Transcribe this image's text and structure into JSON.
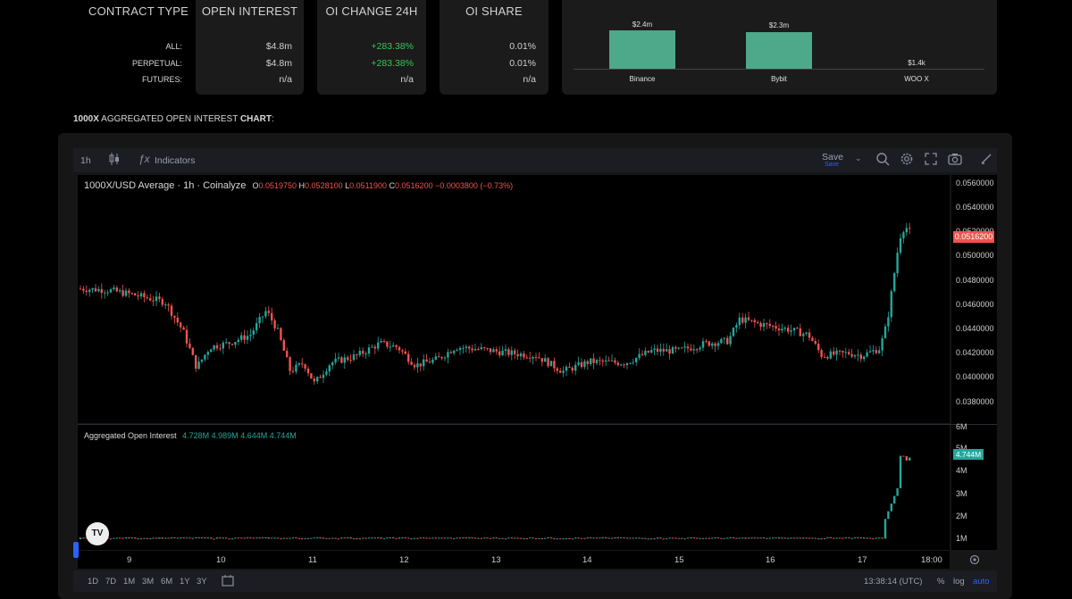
{
  "table": {
    "headers": [
      "CONTRACT TYPE",
      "OPEN INTEREST",
      "OI CHANGE 24H",
      "OI SHARE"
    ],
    "rows": [
      {
        "label": "ALL:",
        "open_interest": "$4.8m",
        "change": "+283.38%",
        "share": "0.01%"
      },
      {
        "label": "PERPETUAL:",
        "open_interest": "$4.8m",
        "change": "+283.38%",
        "share": "0.01%"
      },
      {
        "label": "FUTURES:",
        "open_interest": "n/a",
        "change": "n/a",
        "share": "n/a"
      }
    ]
  },
  "exchange_chart": {
    "bars": [
      {
        "exchange": "Binance",
        "label": "$2.4m",
        "value_m": 2.4
      },
      {
        "exchange": "Bybit",
        "label": "$2.3m",
        "value_m": 2.3
      },
      {
        "exchange": "WOO X",
        "label": "$1.4k",
        "value_m": 0.0014
      }
    ]
  },
  "section_title": {
    "bold": "1000X",
    "middle": "AGGREGATED OPEN INTEREST",
    "bold2": "CHART",
    "suffix": ":"
  },
  "toolbar": {
    "interval": "1h",
    "indicators": "Indicators",
    "save": "Save",
    "save_sub": "Save"
  },
  "price_pane": {
    "title": "1000X/USD Average · 1h · Coinalyze",
    "o_lbl": "O",
    "o": "0.0519750",
    "h_lbl": "H",
    "h": "0.0528100",
    "l_lbl": "L",
    "l": "0.0511900",
    "c_lbl": "C",
    "c": "0.0516200",
    "chg": "−0.0003800 (−0.73%)",
    "last": "0.0516200",
    "ticks": [
      "0.0560000",
      "0.0540000",
      "0.0520000",
      "0.0500000",
      "0.0480000",
      "0.0460000",
      "0.0440000",
      "0.0420000",
      "0.0400000",
      "0.0380000"
    ]
  },
  "oi_pane": {
    "title": "Aggregated Open Interest",
    "v1": "4.728M",
    "v2": "4.989M",
    "v3": "4.644M",
    "v4": "4.744M",
    "last": "4.744M",
    "ticks": [
      "6M",
      "5M",
      "4M",
      "3M",
      "2M",
      "1M"
    ]
  },
  "x_axis": [
    "9",
    "10",
    "11",
    "12",
    "13",
    "14",
    "15",
    "16",
    "17",
    "18:00"
  ],
  "bottom": {
    "ranges": [
      "1D",
      "7D",
      "1M",
      "3M",
      "6M",
      "1Y",
      "3Y"
    ],
    "time": "13:38:14 (UTC)",
    "pct": "%",
    "log": "log",
    "auto": "auto"
  },
  "colors": {
    "up": "#26a69a",
    "down": "#ef5350",
    "bar": "#4ea88a",
    "accent": "#2962ff"
  }
}
